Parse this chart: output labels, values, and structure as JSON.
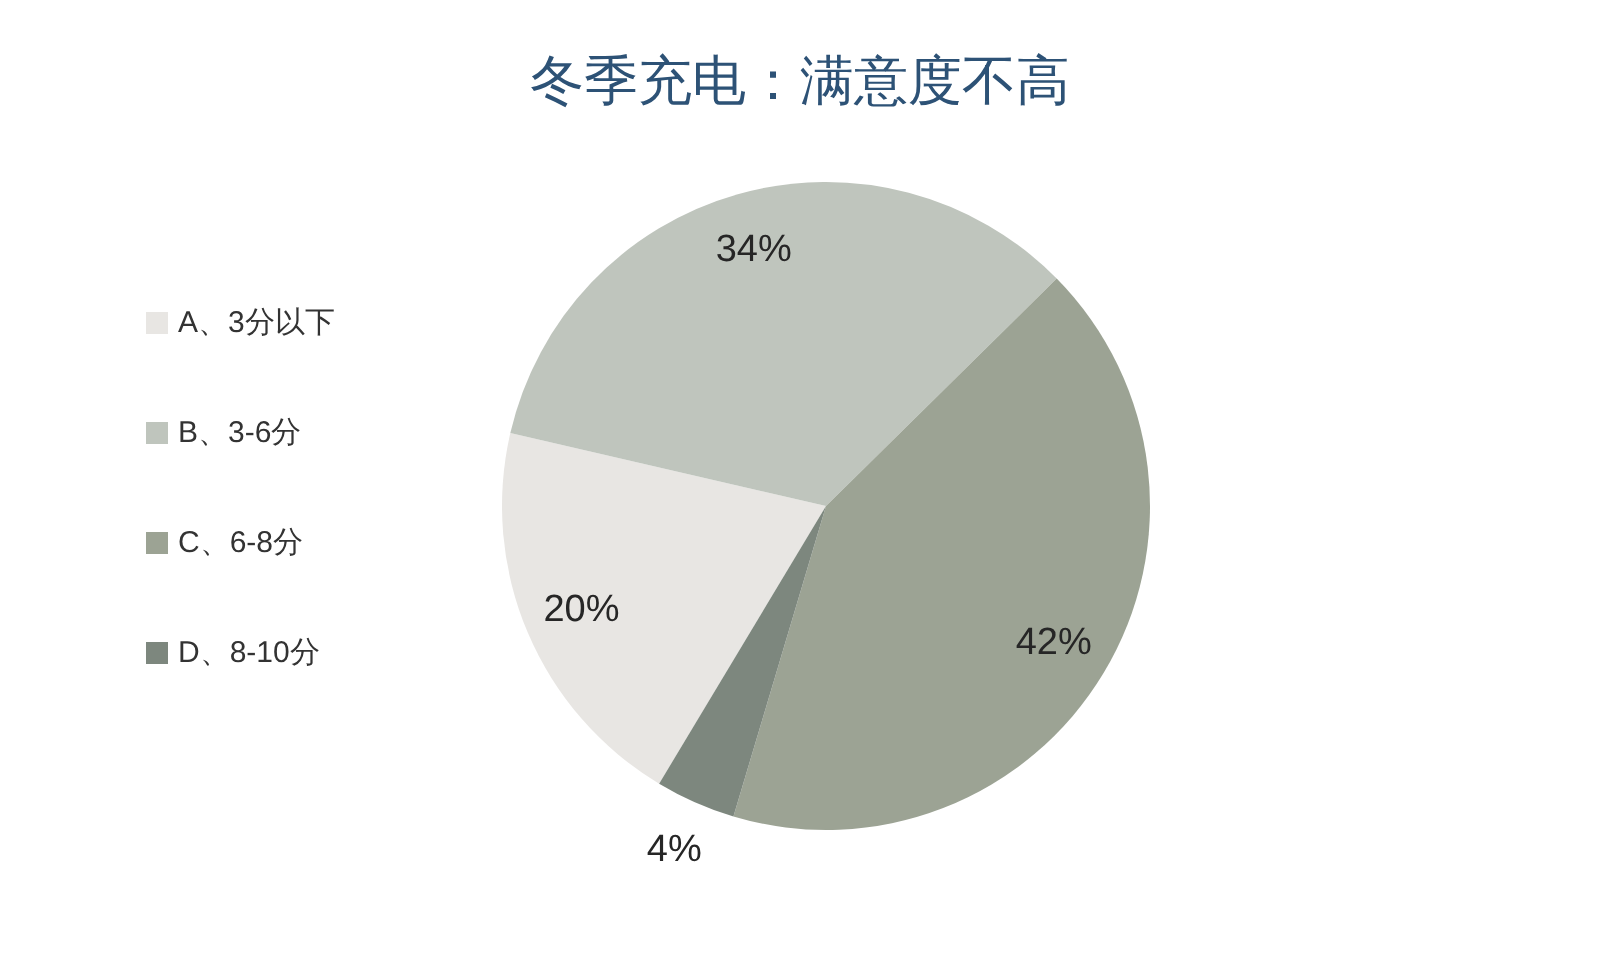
{
  "chart_data": {
    "type": "pie",
    "title": "冬季充电：满意度不高",
    "categories": [
      "A、3分以下",
      "B、3-6分",
      "C、6-8分",
      "D、8-10分"
    ],
    "values": [
      20,
      34,
      42,
      4
    ],
    "colors": [
      "#e8e6e3",
      "#bfc5bd",
      "#9ca394",
      "#7d877e"
    ],
    "value_labels": [
      "20%",
      "34%",
      "42%",
      "4%"
    ],
    "legend": "left"
  }
}
